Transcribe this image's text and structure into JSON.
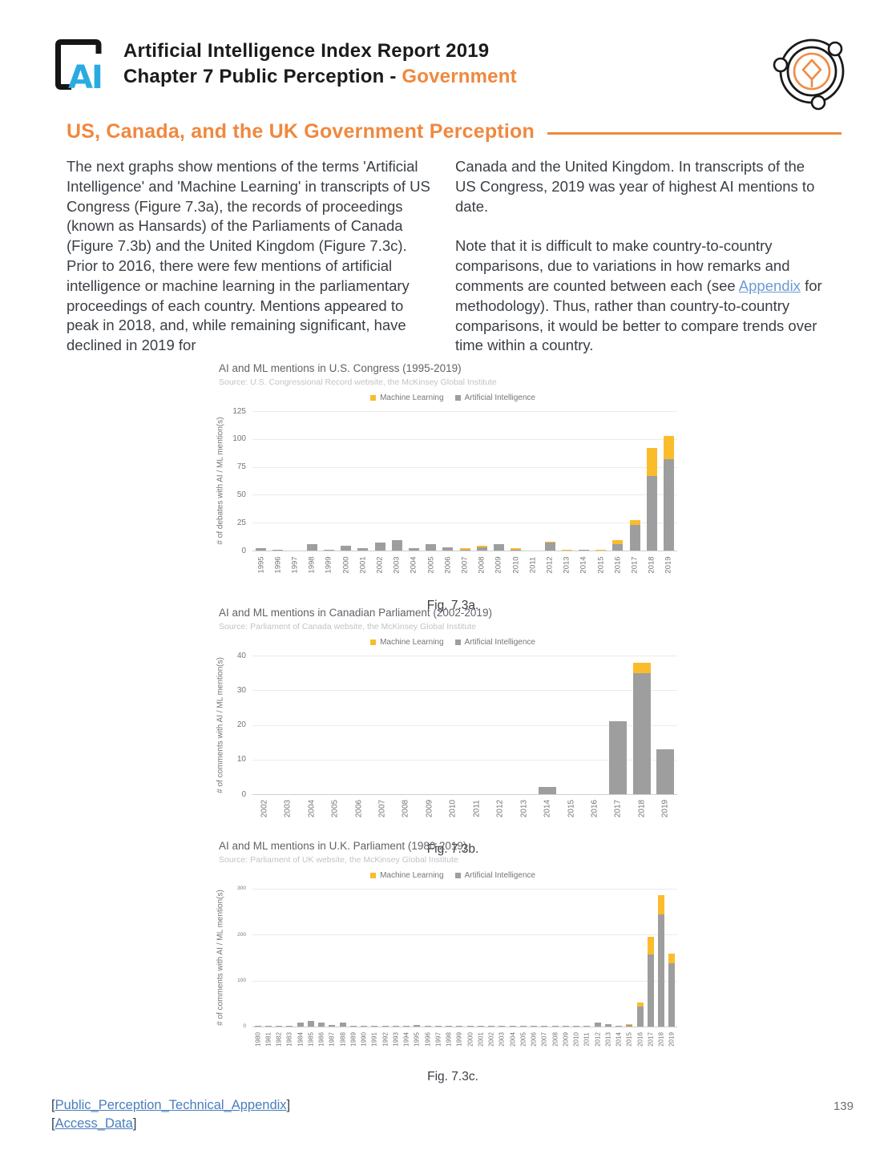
{
  "header": {
    "logo_text": "AI",
    "title": "Artificial Intelligence Index Report 2019",
    "chapter_prefix": "Chapter 7 Public Perception - ",
    "chapter_highlight": "Government"
  },
  "section": {
    "title": "US, Canada, and the UK Government Perception"
  },
  "intro": {
    "left_paragraph": "The next graphs show mentions of the terms 'Artificial Intelligence' and 'Machine Learning' in transcripts of US Congress (Figure 7.3a), the records of proceedings (known as Hansards) of the Parliaments of Canada (Figure 7.3b) and the United Kingdom (Figure 7.3c). Prior to 2016, there were few mentions of artificial intelligence or machine learning in the parliamentary proceedings of each country. Mentions appeared to peak in 2018, and, while remaining significant, have declined in 2019 for",
    "right_paragraph_1": "Canada and the United Kingdom. In transcripts of the US Congress, 2019 was year of highest AI mentions to date.",
    "right_paragraph_2_pre": "Note that it is difficult to make country-to-country comparisons, due to variations in how remarks and comments are counted between each (see ",
    "appendix_link": "Appendix",
    "right_paragraph_2_post": " for methodology). Thus, rather than country-to-country comparisons, it would be better to compare trends over time within a country."
  },
  "colors": {
    "accent_orange": "#f0883e",
    "logo_blue": "#29abe2",
    "link_blue": "#4a7dbe",
    "bar_gray": "#9e9e9e",
    "bar_yellow": "#fbbc2c"
  },
  "chart_data": [
    {
      "type": "bar",
      "stacked": true,
      "title": "AI and ML mentions in U.S. Congress (1995-2019)",
      "source": "Source: U.S. Congressional Record website, the McKinsey Global Institute",
      "ylabel": "# of debates with AI / ML mention(s)",
      "ymax": 125,
      "yticks": [
        0,
        25,
        50,
        75,
        100,
        125
      ],
      "legend": [
        {
          "label": "Machine Learning",
          "color": "#fbbc2c"
        },
        {
          "label": "Artificial Intelligence",
          "color": "#9e9e9e"
        }
      ],
      "categories": [
        "1995",
        "1996",
        "1997",
        "1998",
        "1999",
        "2000",
        "2001",
        "2002",
        "2003",
        "2004",
        "2005",
        "2006",
        "2007",
        "2008",
        "2009",
        "2010",
        "2011",
        "2012",
        "2013",
        "2014",
        "2015",
        "2016",
        "2017",
        "2018",
        "2019"
      ],
      "series": [
        {
          "name": "Artificial Intelligence",
          "color": "#9e9e9e",
          "values": [
            2,
            1,
            0,
            6,
            1,
            4,
            2,
            7,
            9,
            2,
            6,
            3,
            1,
            3,
            6,
            1,
            0,
            7,
            0,
            1,
            0,
            6,
            23,
            67,
            82
          ]
        },
        {
          "name": "Machine Learning",
          "color": "#fbbc2c",
          "values": [
            0,
            0,
            0,
            0,
            0,
            0,
            0,
            0,
            0,
            0,
            0,
            0,
            1,
            1,
            0,
            1,
            0,
            1,
            1,
            0,
            1,
            3,
            4,
            25,
            21
          ]
        }
      ],
      "caption": "Fig. 7.3a."
    },
    {
      "type": "bar",
      "stacked": true,
      "title": "AI and ML mentions in Canadian Parliament (2002-2019)",
      "source": "Source: Parliament of Canada website, the McKinsey Global Institute",
      "ylabel": "# of comments with AI / ML mention(s)",
      "ymax": 40,
      "yticks": [
        0,
        10,
        20,
        30,
        40
      ],
      "legend": [
        {
          "label": "Machine Learning",
          "color": "#fbbc2c"
        },
        {
          "label": "Artificial Intelligence",
          "color": "#9e9e9e"
        }
      ],
      "categories": [
        "2002",
        "2003",
        "2004",
        "2005",
        "2006",
        "2007",
        "2008",
        "2009",
        "2010",
        "2011",
        "2012",
        "2013",
        "2014",
        "2015",
        "2016",
        "2017",
        "2018",
        "2019"
      ],
      "series": [
        {
          "name": "Artificial Intelligence",
          "color": "#9e9e9e",
          "values": [
            0,
            0,
            0,
            0,
            0,
            0,
            0,
            0,
            0,
            0,
            0,
            0,
            2,
            0,
            0,
            21,
            35,
            13
          ]
        },
        {
          "name": "Machine Learning",
          "color": "#fbbc2c",
          "values": [
            0,
            0,
            0,
            0,
            0,
            0,
            0,
            0,
            0,
            0,
            0,
            0,
            0,
            0,
            0,
            0,
            3,
            0
          ]
        }
      ],
      "caption": "Fig. 7.3b."
    },
    {
      "type": "bar",
      "stacked": true,
      "title": "AI and ML mentions in U.K. Parliament (1980-2019)",
      "source": "Source: Parliament of UK website, the McKinsey Global Institute",
      "ylabel": "# of comments with AI / ML mention(s)",
      "ymax": 300,
      "yticks": [
        0,
        100,
        200,
        300
      ],
      "legend": [
        {
          "label": "Machine Learning",
          "color": "#fbbc2c"
        },
        {
          "label": "Artificial Intelligence",
          "color": "#9e9e9e"
        }
      ],
      "categories": [
        "1980",
        "1981",
        "1982",
        "1983",
        "1984",
        "1985",
        "1986",
        "1987",
        "1988",
        "1989",
        "1990",
        "1991",
        "1992",
        "1993",
        "1994",
        "1995",
        "1996",
        "1997",
        "1998",
        "1999",
        "2000",
        "2001",
        "2002",
        "2003",
        "2004",
        "2005",
        "2006",
        "2007",
        "2008",
        "2009",
        "2010",
        "2011",
        "2012",
        "2013",
        "2014",
        "2015",
        "2016",
        "2017",
        "2018",
        "2019"
      ],
      "series": [
        {
          "name": "Artificial Intelligence",
          "color": "#9e9e9e",
          "values": [
            1,
            2,
            1,
            1,
            8,
            12,
            9,
            4,
            8,
            2,
            2,
            1,
            2,
            1,
            2,
            3,
            1,
            1,
            2,
            1,
            1,
            1,
            2,
            2,
            1,
            1,
            1,
            2,
            1,
            1,
            2,
            1,
            9,
            5,
            2,
            4,
            44,
            157,
            244,
            138
          ]
        },
        {
          "name": "Machine Learning",
          "color": "#fbbc2c",
          "values": [
            0,
            0,
            0,
            0,
            0,
            0,
            0,
            0,
            0,
            0,
            0,
            0,
            0,
            0,
            0,
            0,
            0,
            0,
            0,
            0,
            0,
            0,
            0,
            0,
            0,
            0,
            0,
            0,
            0,
            0,
            0,
            0,
            0,
            0,
            0,
            1,
            8,
            38,
            42,
            21
          ]
        }
      ],
      "caption": "Fig. 7.3c."
    }
  ],
  "footer": {
    "links": [
      {
        "prefix": "[",
        "label": "Public_Perception_Technical_Appendix",
        "suffix": "]"
      },
      {
        "prefix": "[",
        "label": "Access_Data",
        "suffix": "]"
      }
    ],
    "page_number": "139"
  }
}
